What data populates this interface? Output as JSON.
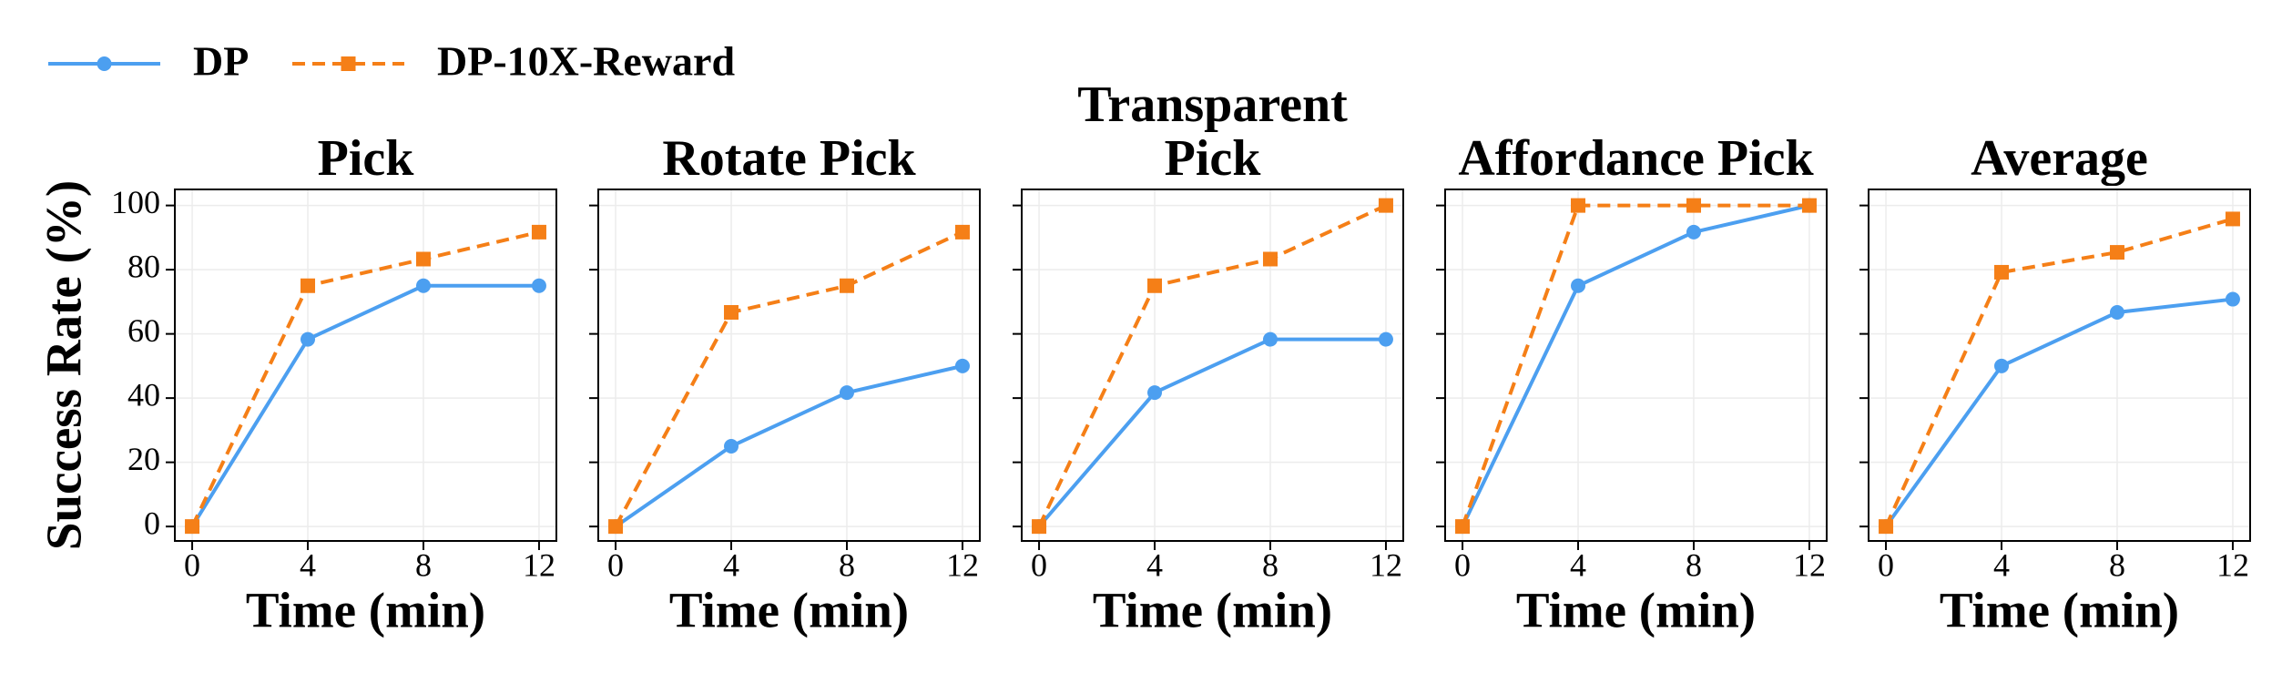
{
  "chart_data": [
    {
      "type": "line",
      "title": "Pick",
      "xlabel": "Time (min)",
      "ylabel": "Success Rate (%)",
      "x": [
        0,
        4,
        8,
        12
      ],
      "series": [
        {
          "name": "DP",
          "color": "#4c9ff0",
          "values": [
            0,
            58.3,
            75,
            75
          ]
        },
        {
          "name": "DP-10X-Reward",
          "color": "#f57f17",
          "values": [
            0,
            75,
            83.3,
            91.7
          ]
        }
      ],
      "xlim": [
        -0.6,
        12.6
      ],
      "ylim": [
        -4.5,
        105
      ],
      "xticks": [
        0,
        4,
        8,
        12
      ],
      "yticks": [
        0,
        20,
        40,
        60,
        80,
        100
      ],
      "grid": true
    },
    {
      "type": "line",
      "title": "Rotate Pick",
      "xlabel": "Time (min)",
      "x": [
        0,
        4,
        8,
        12
      ],
      "series": [
        {
          "name": "DP",
          "color": "#4c9ff0",
          "values": [
            0,
            25,
            41.7,
            50
          ]
        },
        {
          "name": "DP-10X-Reward",
          "color": "#f57f17",
          "values": [
            0,
            66.7,
            75,
            91.7
          ]
        }
      ],
      "xlim": [
        -0.6,
        12.6
      ],
      "ylim": [
        -4.5,
        105
      ],
      "xticks": [
        0,
        4,
        8,
        12
      ],
      "yticks": [
        0,
        20,
        40,
        60,
        80,
        100
      ],
      "grid": true
    },
    {
      "type": "line",
      "title": "Transparent Pick",
      "xlabel": "Time (min)",
      "x": [
        0,
        4,
        8,
        12
      ],
      "series": [
        {
          "name": "DP",
          "color": "#4c9ff0",
          "values": [
            0,
            41.7,
            58.3,
            58.3
          ]
        },
        {
          "name": "DP-10X-Reward",
          "color": "#f57f17",
          "values": [
            0,
            75,
            83.3,
            100
          ]
        }
      ],
      "xlim": [
        -0.6,
        12.6
      ],
      "ylim": [
        -4.5,
        105
      ],
      "xticks": [
        0,
        4,
        8,
        12
      ],
      "yticks": [
        0,
        20,
        40,
        60,
        80,
        100
      ],
      "grid": true
    },
    {
      "type": "line",
      "title": "Affordance Pick",
      "xlabel": "Time (min)",
      "x": [
        0,
        4,
        8,
        12
      ],
      "series": [
        {
          "name": "DP",
          "color": "#4c9ff0",
          "values": [
            0,
            75,
            91.7,
            100
          ]
        },
        {
          "name": "DP-10X-Reward",
          "color": "#f57f17",
          "values": [
            0,
            100,
            100,
            100
          ]
        }
      ],
      "xlim": [
        -0.6,
        12.6
      ],
      "ylim": [
        -4.5,
        105
      ],
      "xticks": [
        0,
        4,
        8,
        12
      ],
      "yticks": [
        0,
        20,
        40,
        60,
        80,
        100
      ],
      "grid": true
    },
    {
      "type": "line",
      "title": "Average",
      "xlabel": "Time (min)",
      "x": [
        0,
        4,
        8,
        12
      ],
      "series": [
        {
          "name": "DP",
          "color": "#4c9ff0",
          "values": [
            0,
            50,
            66.7,
            70.8
          ]
        },
        {
          "name": "DP-10X-Reward",
          "color": "#f57f17",
          "values": [
            0,
            79.2,
            85.4,
            95.8
          ]
        }
      ],
      "xlim": [
        -0.6,
        12.6
      ],
      "ylim": [
        -4.5,
        105
      ],
      "xticks": [
        0,
        4,
        8,
        12
      ],
      "yticks": [
        0,
        20,
        40,
        60,
        80,
        100
      ],
      "grid": true
    }
  ]
}
